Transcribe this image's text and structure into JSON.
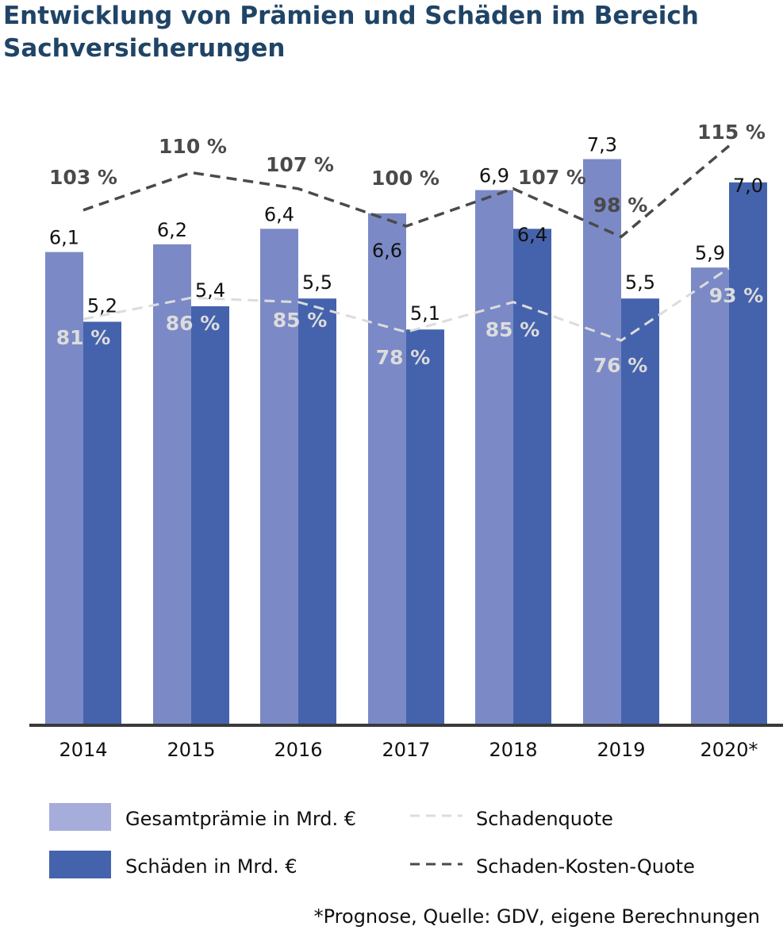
{
  "chart_data": {
    "type": "bar",
    "title": "Entwicklung von Prämien und Schäden im Bereich Sachversicherungen",
    "categories": [
      "2014",
      "2015",
      "2016",
      "2017",
      "2018",
      "2019",
      "2020*"
    ],
    "series": [
      {
        "name": "Gesamtprämie in Mrd. €",
        "kind": "bar",
        "color": "#7b8ac6",
        "values": [
          6.1,
          6.2,
          6.4,
          6.6,
          6.9,
          7.3,
          5.9
        ],
        "labels": [
          "6,1",
          "6,2",
          "6,4",
          "6,6",
          "6,9",
          "7,3",
          "5,9"
        ]
      },
      {
        "name": "Schäden in Mrd. €",
        "kind": "bar",
        "color": "#4563ac",
        "values": [
          5.2,
          5.4,
          5.5,
          5.1,
          6.4,
          5.5,
          7.0
        ],
        "labels": [
          "5,2",
          "5,4",
          "5,5",
          "5,1",
          "6,4",
          "5,5",
          "7,0"
        ]
      },
      {
        "name": "Schadenquote",
        "kind": "line",
        "style": "dashed",
        "color": "#dcdcdc",
        "values": [
          81,
          86,
          85,
          78,
          85,
          76,
          93
        ],
        "labels": [
          "81 %",
          "86 %",
          "85 %",
          "78 %",
          "85 %",
          "76 %",
          "93 %"
        ]
      },
      {
        "name": "Schaden-Kosten-Quote",
        "kind": "line",
        "style": "dashed",
        "color": "#4a4a4a",
        "values": [
          103,
          110,
          107,
          100,
          107,
          98,
          115
        ],
        "labels": [
          "103 %",
          "110 %",
          "107 %",
          "100 %",
          "107 %",
          "98 %",
          "115 %"
        ]
      }
    ],
    "legend": {
      "placement": "bottom",
      "items": [
        {
          "label": "Gesamtprämie in Mrd. €",
          "swatch": "box",
          "color": "#a6addb"
        },
        {
          "label": "Schadenquote",
          "swatch": "dashed-line",
          "color": "#dcdcdc"
        },
        {
          "label": "Schäden in Mrd. €",
          "swatch": "box",
          "color": "#4563ac"
        },
        {
          "label": "Schaden-Kosten-Quote",
          "swatch": "dashed-line",
          "color": "#4a4a4a"
        }
      ]
    },
    "footnote": "*Prognose, Quelle: GDV, eigene Berechnungen",
    "axis_color": "#3a3a3a",
    "grid": false
  }
}
